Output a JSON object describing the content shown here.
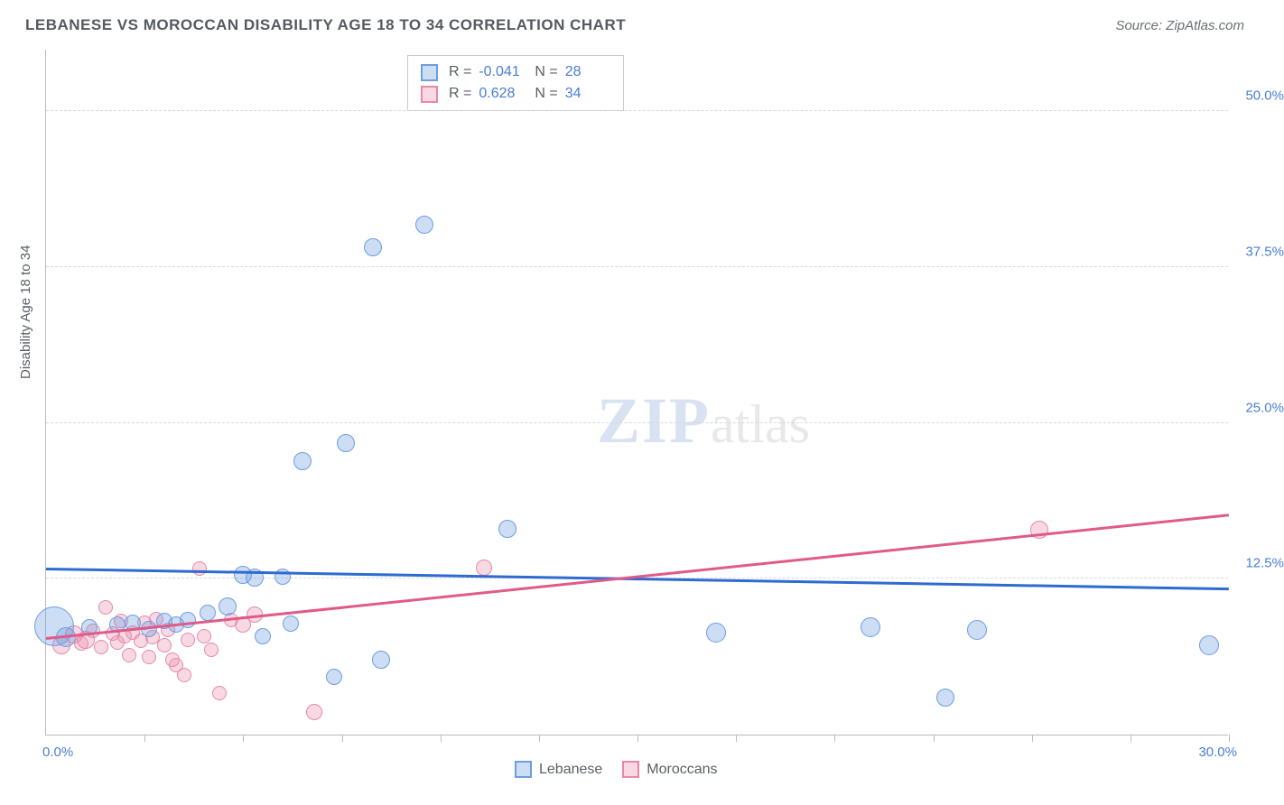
{
  "header": {
    "title": "LEBANESE VS MOROCCAN DISABILITY AGE 18 TO 34 CORRELATION CHART",
    "source": "Source: ZipAtlas.com"
  },
  "chart": {
    "type": "scatter",
    "ylabel": "Disability Age 18 to 34",
    "watermark_zip": "ZIP",
    "watermark_atlas": "atlas",
    "xlim": [
      0,
      30
    ],
    "ylim": [
      0,
      55
    ],
    "xlim_label_min": "0.0%",
    "xlim_label_max": "30.0%",
    "xtick_positions": [
      2.5,
      5.0,
      7.5,
      10.0,
      12.5,
      15.0,
      17.5,
      20.0,
      22.5,
      25.0,
      27.5,
      30.0
    ],
    "ygrid": [
      {
        "v": 12.5,
        "label": "12.5%"
      },
      {
        "v": 25.0,
        "label": "25.0%"
      },
      {
        "v": 37.5,
        "label": "37.5%"
      },
      {
        "v": 50.0,
        "label": "50.0%"
      }
    ],
    "background_color": "#ffffff",
    "grid_color": "#d6d9dd",
    "axis_color": "#b8bcc2",
    "tick_label_color": "#4a7dd6",
    "series": {
      "lebanese": {
        "label": "Lebanese",
        "fill": "rgba(109,158,224,0.35)",
        "stroke": "#6d9ee0",
        "trendline_color": "#2e6bd1",
        "trendline": {
          "x1": 0,
          "y1": 13.2,
          "x2": 30,
          "y2": 11.6
        },
        "R_label": "R =",
        "R_value": "-0.041",
        "N_label": "N =",
        "N_value": "28",
        "points": [
          {
            "x": 0.2,
            "y": 8.7,
            "r": 22
          },
          {
            "x": 0.5,
            "y": 7.8,
            "r": 11
          },
          {
            "x": 1.1,
            "y": 8.6,
            "r": 9
          },
          {
            "x": 1.8,
            "y": 8.8,
            "r": 9
          },
          {
            "x": 2.2,
            "y": 9.0,
            "r": 9
          },
          {
            "x": 2.6,
            "y": 8.5,
            "r": 9
          },
          {
            "x": 3.0,
            "y": 9.1,
            "r": 9
          },
          {
            "x": 3.3,
            "y": 8.8,
            "r": 9
          },
          {
            "x": 3.6,
            "y": 9.2,
            "r": 9
          },
          {
            "x": 4.1,
            "y": 9.8,
            "r": 9
          },
          {
            "x": 4.6,
            "y": 10.3,
            "r": 10
          },
          {
            "x": 5.0,
            "y": 12.8,
            "r": 10
          },
          {
            "x": 5.3,
            "y": 12.6,
            "r": 10
          },
          {
            "x": 5.5,
            "y": 7.9,
            "r": 9
          },
          {
            "x": 6.0,
            "y": 12.7,
            "r": 9
          },
          {
            "x": 6.2,
            "y": 8.9,
            "r": 9
          },
          {
            "x": 6.5,
            "y": 21.9,
            "r": 10
          },
          {
            "x": 7.3,
            "y": 4.6,
            "r": 9
          },
          {
            "x": 7.6,
            "y": 23.4,
            "r": 10
          },
          {
            "x": 8.3,
            "y": 39.1,
            "r": 10
          },
          {
            "x": 8.5,
            "y": 6.0,
            "r": 10
          },
          {
            "x": 9.6,
            "y": 40.9,
            "r": 10
          },
          {
            "x": 11.7,
            "y": 16.5,
            "r": 10
          },
          {
            "x": 17.0,
            "y": 8.2,
            "r": 11
          },
          {
            "x": 20.9,
            "y": 8.6,
            "r": 11
          },
          {
            "x": 22.8,
            "y": 3.0,
            "r": 10
          },
          {
            "x": 23.6,
            "y": 8.4,
            "r": 11
          },
          {
            "x": 29.5,
            "y": 7.2,
            "r": 11
          }
        ]
      },
      "moroccan": {
        "label": "Moroccans",
        "fill": "rgba(232,136,168,0.32)",
        "stroke": "#e888a8",
        "trendline_color": "#e05a8a",
        "trendline": {
          "x1": 0,
          "y1": 7.6,
          "x2": 30,
          "y2": 17.5
        },
        "R_label": "R =",
        "R_value": "0.628",
        "N_label": "N =",
        "N_value": "34",
        "points": [
          {
            "x": 0.4,
            "y": 7.2,
            "r": 10
          },
          {
            "x": 0.7,
            "y": 8.0,
            "r": 10
          },
          {
            "x": 0.9,
            "y": 7.3,
            "r": 8
          },
          {
            "x": 1.0,
            "y": 7.6,
            "r": 10
          },
          {
            "x": 1.2,
            "y": 8.3,
            "r": 8
          },
          {
            "x": 1.4,
            "y": 7.0,
            "r": 8
          },
          {
            "x": 1.5,
            "y": 10.2,
            "r": 8
          },
          {
            "x": 1.7,
            "y": 8.1,
            "r": 8
          },
          {
            "x": 1.8,
            "y": 7.4,
            "r": 8
          },
          {
            "x": 1.9,
            "y": 9.1,
            "r": 8
          },
          {
            "x": 2.0,
            "y": 7.9,
            "r": 8
          },
          {
            "x": 2.1,
            "y": 6.4,
            "r": 8
          },
          {
            "x": 2.2,
            "y": 8.2,
            "r": 8
          },
          {
            "x": 2.4,
            "y": 7.5,
            "r": 8
          },
          {
            "x": 2.5,
            "y": 9.0,
            "r": 8
          },
          {
            "x": 2.6,
            "y": 6.2,
            "r": 8
          },
          {
            "x": 2.7,
            "y": 7.8,
            "r": 8
          },
          {
            "x": 2.8,
            "y": 9.3,
            "r": 8
          },
          {
            "x": 3.0,
            "y": 7.2,
            "r": 8
          },
          {
            "x": 3.1,
            "y": 8.4,
            "r": 8
          },
          {
            "x": 3.2,
            "y": 6.0,
            "r": 8
          },
          {
            "x": 3.3,
            "y": 5.6,
            "r": 8
          },
          {
            "x": 3.5,
            "y": 4.8,
            "r": 8
          },
          {
            "x": 3.6,
            "y": 7.6,
            "r": 8
          },
          {
            "x": 3.9,
            "y": 13.3,
            "r": 8
          },
          {
            "x": 4.0,
            "y": 7.9,
            "r": 8
          },
          {
            "x": 4.2,
            "y": 6.8,
            "r": 8
          },
          {
            "x": 4.4,
            "y": 3.3,
            "r": 8
          },
          {
            "x": 4.7,
            "y": 9.2,
            "r": 8
          },
          {
            "x": 5.0,
            "y": 8.8,
            "r": 9
          },
          {
            "x": 5.3,
            "y": 9.6,
            "r": 9
          },
          {
            "x": 6.8,
            "y": 1.8,
            "r": 9
          },
          {
            "x": 11.1,
            "y": 13.4,
            "r": 9
          },
          {
            "x": 25.2,
            "y": 16.4,
            "r": 10
          }
        ]
      }
    }
  },
  "legend_bottom": {
    "item1": "Lebanese",
    "item2": "Moroccans"
  }
}
